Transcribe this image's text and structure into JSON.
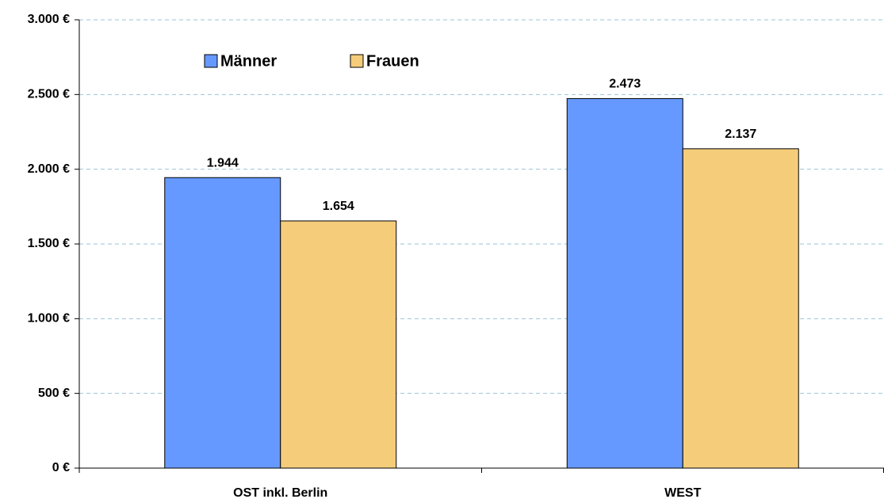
{
  "chart_data": {
    "type": "bar",
    "categories": [
      "OST inkl. Berlin",
      "WEST"
    ],
    "series": [
      {
        "name": "Männer",
        "color": "#6699ff",
        "values": [
          1944,
          2473
        ],
        "value_labels": [
          "1.944",
          "2.473"
        ]
      },
      {
        "name": "Frauen",
        "color": "#f5cc7a",
        "values": [
          1654,
          2137
        ],
        "value_labels": [
          "1.654",
          "2.137"
        ]
      }
    ],
    "ylim": [
      0,
      3000
    ],
    "yticks": [
      {
        "value": 0,
        "label": "0 €"
      },
      {
        "value": 500,
        "label": "500 €"
      },
      {
        "value": 1000,
        "label": "1.000 €"
      },
      {
        "value": 1500,
        "label": "1.500 €"
      },
      {
        "value": 2000,
        "label": "2.000 €"
      },
      {
        "value": 2500,
        "label": "2.500 €"
      },
      {
        "value": 3000,
        "label": "3.000 €"
      }
    ],
    "grid": true,
    "legend": "top-left"
  }
}
